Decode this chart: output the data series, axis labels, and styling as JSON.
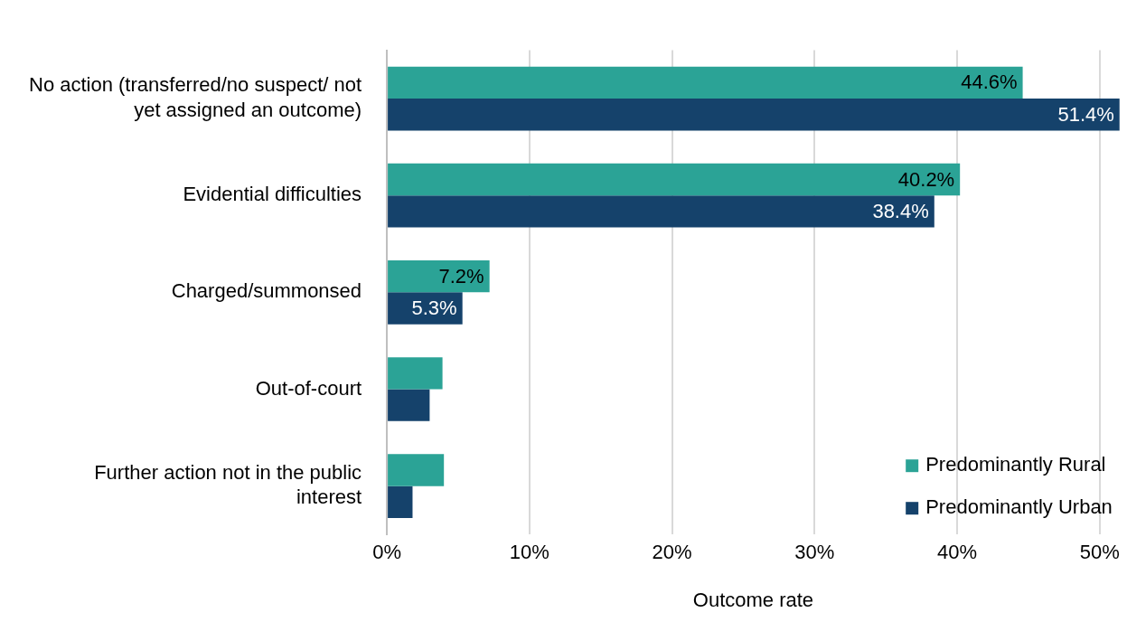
{
  "chart_data": {
    "type": "bar",
    "orientation": "horizontal",
    "xlabel": "Outcome rate",
    "categories": [
      "No action (transferred/no suspect/ not yet assigned an outcome)",
      "Evidential difficulties",
      "Charged/summonsed",
      "Out-of-court",
      "Further action not in the public interest"
    ],
    "series": [
      {
        "name": "Predominantly Rural",
        "color": "#2ba396",
        "values": [
          44.6,
          40.2,
          7.2,
          3.9,
          4.0
        ],
        "value_labels": [
          "44.6%",
          "40.2%",
          "7.2%",
          null,
          null
        ]
      },
      {
        "name": "Predominantly Urban",
        "color": "#15426b",
        "values": [
          51.4,
          38.4,
          5.3,
          3.0,
          1.8
        ],
        "value_labels": [
          "51.4%",
          "38.4%",
          "5.3%",
          null,
          null
        ]
      }
    ],
    "xticks": [
      {
        "value": 0,
        "label": "0%"
      },
      {
        "value": 10,
        "label": "10%"
      },
      {
        "value": 20,
        "label": "20%"
      },
      {
        "value": 30,
        "label": "30%"
      },
      {
        "value": 40,
        "label": "40%"
      },
      {
        "value": 50,
        "label": "50%"
      }
    ],
    "xlim": [
      0,
      51.4
    ],
    "grid": "x",
    "legend": "bottom right"
  }
}
